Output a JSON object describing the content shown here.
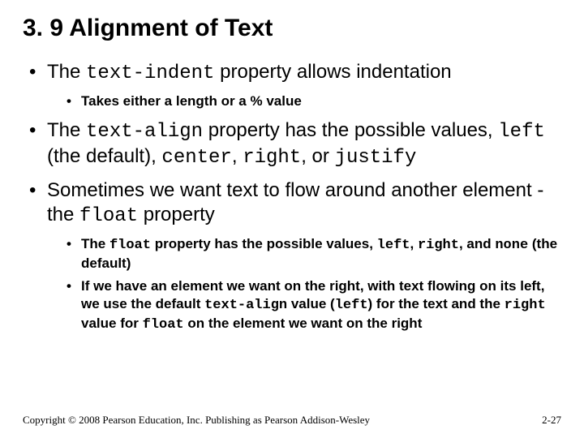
{
  "heading": "3. 9 Alignment of Text",
  "bullets": [
    {
      "parts": [
        {
          "t": "The "
        },
        {
          "t": "text-indent",
          "code": true
        },
        {
          "t": " property allows indentation"
        }
      ],
      "sub": [
        {
          "parts": [
            {
              "t": "Takes either a length or a % value"
            }
          ]
        }
      ]
    },
    {
      "parts": [
        {
          "t": "The "
        },
        {
          "t": "text-align",
          "code": true
        },
        {
          "t": " property has the possible values, "
        },
        {
          "t": "left",
          "code": true
        },
        {
          "t": " (the default), "
        },
        {
          "t": "center",
          "code": true
        },
        {
          "t": ", "
        },
        {
          "t": "right",
          "code": true
        },
        {
          "t": ", or "
        },
        {
          "t": "justify",
          "code": true
        }
      ]
    },
    {
      "parts": [
        {
          "t": "Sometimes we want text to flow around another element - the "
        },
        {
          "t": "float",
          "code": true
        },
        {
          "t": " property"
        }
      ],
      "sub": [
        {
          "parts": [
            {
              "t": "The "
            },
            {
              "t": "float",
              "code": true
            },
            {
              "t": " property has the possible values, "
            },
            {
              "t": "left",
              "code": true
            },
            {
              "t": ", "
            },
            {
              "t": "right",
              "code": true
            },
            {
              "t": ", and "
            },
            {
              "t": "none",
              "code": true
            },
            {
              "t": " (the default)"
            }
          ]
        },
        {
          "parts": [
            {
              "t": "If we have an element we want on the right, with text flowing on its left, we use the default "
            },
            {
              "t": "text-align",
              "code": true
            },
            {
              "t": " value ("
            },
            {
              "t": "left",
              "code": true
            },
            {
              "t": ") for the text and the "
            },
            {
              "t": "right",
              "code": true
            },
            {
              "t": " value for "
            },
            {
              "t": "float",
              "code": true
            },
            {
              "t": " on the element we want on the right"
            }
          ]
        }
      ]
    }
  ],
  "footer": {
    "copyright": "Copyright © 2008 Pearson Education, Inc. Publishing as Pearson Addison-Wesley",
    "page": "2-27"
  },
  "colors": {
    "text": "#000000",
    "background": "#ffffff"
  }
}
